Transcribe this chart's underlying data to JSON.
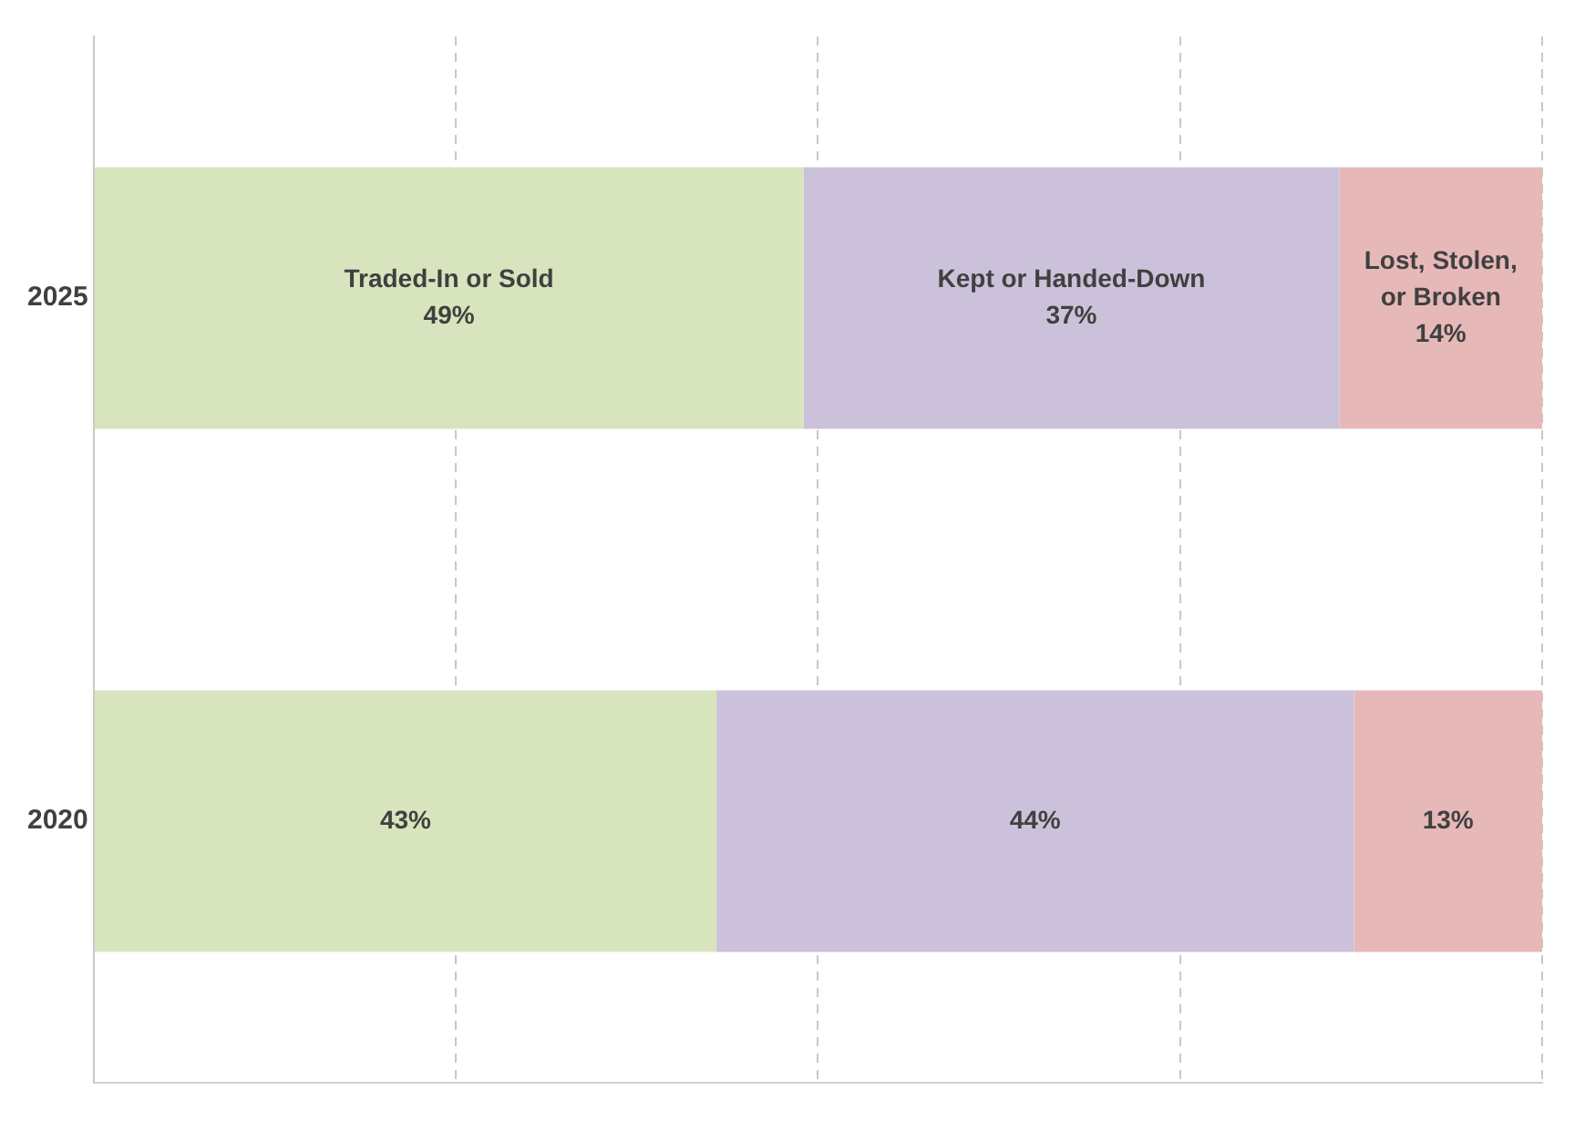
{
  "chart_data": {
    "type": "bar",
    "orientation": "horizontal",
    "stacked": true,
    "categories": [
      "2025",
      "2020"
    ],
    "series": [
      {
        "name": "Traded-In or Sold",
        "color": "#d7e4bd",
        "values": [
          49,
          43
        ],
        "value_labels": [
          "49%",
          "43%"
        ]
      },
      {
        "name": "Kept or Handed-Down",
        "color": "#ccc1da",
        "values": [
          37,
          44
        ],
        "value_labels": [
          "37%",
          "44%"
        ]
      },
      {
        "name": "Lost, Stolen, or Broken",
        "color": "#e6b9b8",
        "values": [
          14,
          13
        ],
        "value_labels": [
          "14%",
          "13%"
        ]
      }
    ],
    "xlim": [
      0,
      100
    ],
    "xticks": [
      {
        "value": 0,
        "label": null
      },
      {
        "value": 25,
        "label": null
      },
      {
        "value": 50,
        "label": null
      },
      {
        "value": 75,
        "label": null
      },
      {
        "value": 100,
        "label": null
      }
    ],
    "grid": "x",
    "tick_labels": "y",
    "legend": false
  }
}
